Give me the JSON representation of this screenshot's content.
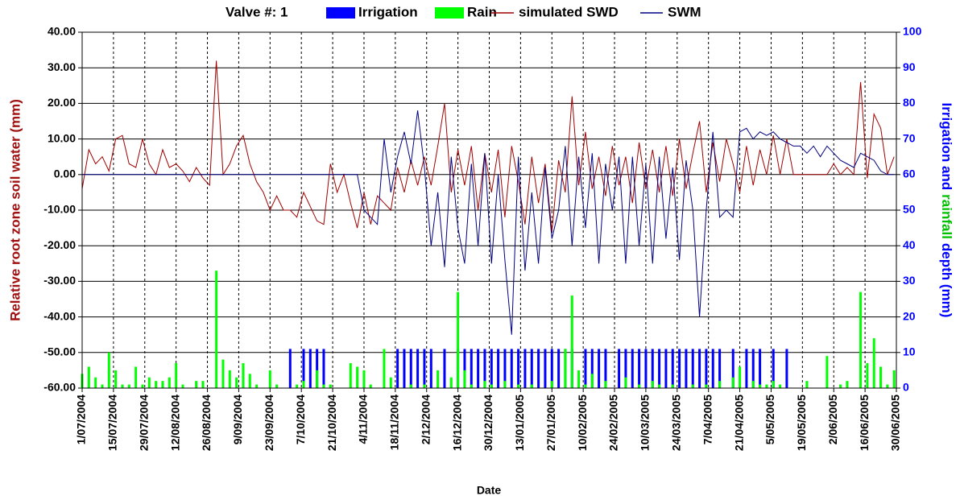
{
  "chart_data": {
    "type": "line",
    "legend_title": "Valve #: 1",
    "x_label": "Date",
    "y_label": "Relative root zone soil water  (mm)",
    "y2_label_parts": [
      "Irrigation and",
      "rainfall",
      "depth (mm)"
    ],
    "y2_label_colors": [
      "#0000ff",
      "#00c000",
      "#0000ff"
    ],
    "grid": true,
    "xlim": [
      "1/07/2004",
      "30/06/2005"
    ],
    "xticks": [
      "1/07/2004",
      "15/07/2004",
      "29/07/2004",
      "12/08/2004",
      "26/08/2004",
      "9/09/2004",
      "23/09/2004",
      "7/10/2004",
      "21/10/2004",
      "4/11/2004",
      "18/11/2004",
      "2/12/2004",
      "16/12/2004",
      "30/12/2004",
      "13/01/2005",
      "27/01/2005",
      "10/02/2005",
      "24/02/2005",
      "10/03/2005",
      "24/03/2005",
      "7/04/2005",
      "21/04/2005",
      "5/05/2005",
      "19/05/2005",
      "2/06/2005",
      "16/06/2005",
      "30/06/2005"
    ],
    "ylim": [
      -60,
      40
    ],
    "yticks": [
      {
        "value": -60,
        "label": "-60.00"
      },
      {
        "value": -50,
        "label": "-50.00"
      },
      {
        "value": -40,
        "label": "-40.00"
      },
      {
        "value": -30,
        "label": "-30.00"
      },
      {
        "value": -20,
        "label": "-20.00"
      },
      {
        "value": -10,
        "label": "-10.00"
      },
      {
        "value": 0,
        "label": "0.00"
      },
      {
        "value": 10,
        "label": "10.00"
      },
      {
        "value": 20,
        "label": "20.00"
      },
      {
        "value": 30,
        "label": "30.00"
      },
      {
        "value": 40,
        "label": "40.00"
      }
    ],
    "y2lim": [
      0,
      100
    ],
    "y2ticks": [
      0,
      10,
      20,
      30,
      40,
      50,
      60,
      70,
      80,
      90,
      100
    ],
    "x": [
      "1/07/2004",
      "4/07/2004",
      "7/07/2004",
      "10/07/2004",
      "13/07/2004",
      "16/07/2004",
      "19/07/2004",
      "22/07/2004",
      "25/07/2004",
      "28/07/2004",
      "31/07/2004",
      "3/08/2004",
      "6/08/2004",
      "9/08/2004",
      "12/08/2004",
      "15/08/2004",
      "18/08/2004",
      "21/08/2004",
      "24/08/2004",
      "27/08/2004",
      "30/08/2004",
      "2/09/2004",
      "5/09/2004",
      "8/09/2004",
      "11/09/2004",
      "14/09/2004",
      "17/09/2004",
      "20/09/2004",
      "23/09/2004",
      "26/09/2004",
      "29/09/2004",
      "2/10/2004",
      "5/10/2004",
      "8/10/2004",
      "11/10/2004",
      "14/10/2004",
      "17/10/2004",
      "20/10/2004",
      "23/10/2004",
      "26/10/2004",
      "29/10/2004",
      "1/11/2004",
      "4/11/2004",
      "7/11/2004",
      "10/11/2004",
      "13/11/2004",
      "16/11/2004",
      "19/11/2004",
      "22/11/2004",
      "25/11/2004",
      "28/11/2004",
      "1/12/2004",
      "4/12/2004",
      "7/12/2004",
      "10/12/2004",
      "13/12/2004",
      "16/12/2004",
      "19/12/2004",
      "22/12/2004",
      "25/12/2004",
      "28/12/2004",
      "31/12/2004",
      "3/01/2005",
      "6/01/2005",
      "9/01/2005",
      "12/01/2005",
      "15/01/2005",
      "18/01/2005",
      "21/01/2005",
      "24/01/2005",
      "27/01/2005",
      "30/01/2005",
      "2/02/2005",
      "5/02/2005",
      "8/02/2005",
      "11/02/2005",
      "14/02/2005",
      "17/02/2005",
      "20/02/2005",
      "23/02/2005",
      "26/02/2005",
      "1/03/2005",
      "4/03/2005",
      "7/03/2005",
      "10/03/2005",
      "13/03/2005",
      "16/03/2005",
      "19/03/2005",
      "22/03/2005",
      "25/03/2005",
      "28/03/2005",
      "31/03/2005",
      "3/04/2005",
      "6/04/2005",
      "9/04/2005",
      "12/04/2005",
      "15/04/2005",
      "18/04/2005",
      "21/04/2005",
      "24/04/2005",
      "27/04/2005",
      "30/04/2005",
      "3/05/2005",
      "6/05/2005",
      "9/05/2005",
      "12/05/2005",
      "15/05/2005",
      "18/05/2005",
      "21/05/2005",
      "24/05/2005",
      "27/05/2005",
      "30/05/2005",
      "2/06/2005",
      "5/06/2005",
      "8/06/2005",
      "11/06/2005",
      "14/06/2005",
      "17/06/2005",
      "20/06/2005",
      "23/06/2005",
      "26/06/2005",
      "29/06/2005"
    ],
    "series": [
      {
        "name": "Irrigation",
        "type": "bar",
        "axis": "y2",
        "color": "#0000ff",
        "values": [
          0,
          0,
          0,
          0,
          0,
          0,
          0,
          0,
          0,
          0,
          0,
          0,
          0,
          0,
          0,
          0,
          0,
          0,
          0,
          0,
          0,
          0,
          0,
          0,
          0,
          0,
          0,
          0,
          0,
          0,
          0,
          11,
          0,
          11,
          11,
          11,
          11,
          0,
          0,
          0,
          0,
          0,
          0,
          0,
          0,
          0,
          0,
          11,
          11,
          11,
          11,
          11,
          11,
          0,
          11,
          0,
          11,
          11,
          11,
          11,
          11,
          11,
          11,
          11,
          11,
          11,
          11,
          11,
          11,
          11,
          11,
          11,
          11,
          11,
          0,
          11,
          11,
          11,
          11,
          0,
          11,
          11,
          11,
          11,
          11,
          11,
          11,
          11,
          11,
          11,
          11,
          11,
          11,
          11,
          11,
          11,
          0,
          11,
          0,
          11,
          11,
          11,
          0,
          11,
          0,
          11,
          0,
          0,
          0,
          0,
          0,
          0,
          0,
          0,
          0,
          0,
          0,
          0,
          0,
          0,
          0,
          0
        ]
      },
      {
        "name": "Rain",
        "type": "bar",
        "axis": "y2",
        "color": "#00ff00",
        "values": [
          4,
          6,
          3,
          1,
          10,
          5,
          1,
          1,
          6,
          1,
          3,
          2,
          2,
          3,
          7,
          1,
          0,
          2,
          2,
          0,
          33,
          8,
          5,
          3,
          7,
          4,
          1,
          0,
          5,
          1,
          0,
          0,
          1,
          2,
          0,
          5,
          1,
          1,
          0,
          0,
          7,
          6,
          5,
          1,
          0,
          11,
          3,
          0,
          0,
          1,
          0,
          1,
          0,
          5,
          0,
          3,
          27,
          5,
          1,
          0,
          2,
          1,
          0,
          2,
          0,
          1,
          0,
          1,
          0,
          0,
          2,
          0,
          11,
          26,
          5,
          1,
          4,
          0,
          2,
          0,
          0,
          3,
          0,
          1,
          0,
          2,
          1,
          0,
          1,
          0,
          0,
          1,
          0,
          1,
          0,
          2,
          0,
          3,
          6,
          0,
          2,
          1,
          1,
          2,
          1,
          0,
          0,
          0,
          2,
          0,
          0,
          9,
          0,
          1,
          2,
          0,
          27,
          7,
          14,
          6,
          1,
          5
        ]
      },
      {
        "name": "simulated SWD",
        "type": "line",
        "color": "#a00000",
        "values": [
          -4,
          7,
          3,
          5,
          1,
          10,
          11,
          3,
          2,
          10,
          3,
          0,
          7,
          2,
          3,
          1,
          -2,
          2,
          -1,
          -3,
          32,
          0,
          3,
          8,
          11,
          3,
          -2,
          -5,
          -10,
          -6,
          -10,
          -10,
          -12,
          -5,
          -9,
          -13,
          -14,
          3,
          -5,
          0,
          -8,
          -15,
          -5,
          -14,
          -6,
          -8,
          -10,
          2,
          -5,
          4,
          -3,
          5,
          -3,
          8,
          20,
          -5,
          7,
          -3,
          8,
          -10,
          6,
          -5,
          7,
          -12,
          8,
          -2,
          -14,
          5,
          -8,
          3,
          -16,
          4,
          -5,
          22,
          -3,
          12,
          -4,
          5,
          -6,
          8,
          -3,
          5,
          -8,
          9,
          -4,
          7,
          -5,
          8,
          -6,
          10,
          -4,
          6,
          15,
          -5,
          9,
          -2,
          10,
          3,
          -5,
          8,
          -3,
          7,
          0,
          11,
          0,
          10,
          0,
          0,
          0,
          0,
          0,
          0,
          3,
          0,
          2,
          0,
          26,
          -1,
          17,
          13,
          0,
          5
        ]
      },
      {
        "name": "SWM",
        "type": "line",
        "color": "#000080",
        "values": [
          0,
          0,
          0,
          0,
          0,
          0,
          0,
          0,
          0,
          0,
          0,
          0,
          0,
          0,
          0,
          0,
          0,
          0,
          0,
          0,
          0,
          0,
          0,
          0,
          0,
          0,
          0,
          0,
          0,
          0,
          0,
          0,
          0,
          0,
          0,
          0,
          0,
          0,
          0,
          0,
          0,
          0,
          -10,
          -12,
          -14,
          10,
          -5,
          5,
          12,
          3,
          18,
          2,
          -20,
          -5,
          -26,
          5,
          -15,
          -25,
          3,
          -20,
          6,
          -25,
          0,
          -24,
          -45,
          5,
          -27,
          -5,
          -25,
          2,
          -18,
          -10,
          8,
          -20,
          5,
          -15,
          6,
          -25,
          3,
          -10,
          5,
          -25,
          5,
          -20,
          3,
          -25,
          5,
          -18,
          2,
          -24,
          4,
          -10,
          -40,
          -10,
          12,
          -12,
          -10,
          -12,
          12,
          13,
          10,
          12,
          11,
          12,
          10,
          9,
          8,
          8,
          6,
          8,
          5,
          8,
          6,
          4,
          3,
          2,
          6,
          5,
          4,
          1,
          0,
          0
        ]
      }
    ]
  }
}
